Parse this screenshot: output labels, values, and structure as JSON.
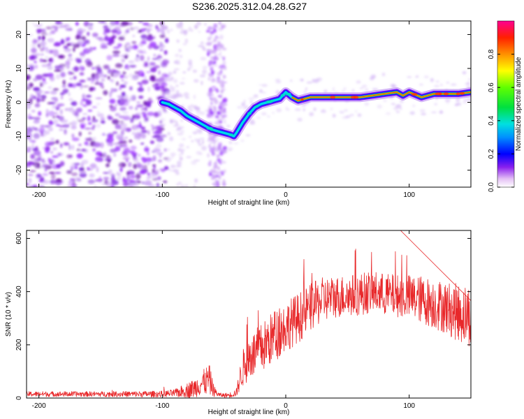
{
  "title": "S236.2025.312.04.28.G27",
  "chart_data": [
    {
      "type": "heatmap",
      "title": "S236.2025.312.04.28.G27",
      "xlabel": "Height of straight line (km)",
      "ylabel": "Frequency (Hz)",
      "xlim": [
        -210,
        150
      ],
      "ylim": [
        -25,
        24
      ],
      "xticks": [
        -200,
        -100,
        0,
        100
      ],
      "yticks": [
        -20,
        -10,
        0,
        10,
        20
      ],
      "ridge_x": [
        -100,
        -95,
        -90,
        -85,
        -80,
        -75,
        -70,
        -65,
        -60,
        -55,
        -50,
        -45,
        -42,
        -40,
        -35,
        -30,
        -25,
        -20,
        -15,
        -10,
        -5,
        0,
        5,
        10,
        20,
        40,
        60,
        70,
        80,
        90,
        95,
        100,
        110,
        120,
        130,
        140,
        150
      ],
      "ridge_y": [
        0,
        -0.5,
        -1.5,
        -2.5,
        -4,
        -5,
        -6,
        -7,
        -8,
        -8.5,
        -9,
        -9.5,
        -10,
        -9,
        -6,
        -3.5,
        -1.5,
        -0.5,
        0,
        0.5,
        1,
        3,
        1.5,
        0.5,
        1.5,
        1.5,
        1.5,
        2,
        2.5,
        3,
        2,
        3,
        1.5,
        2.5,
        2.5,
        2.5,
        3
      ]
    },
    {
      "type": "colorbar",
      "label": "Normalized spectral amplitude",
      "range": [
        0,
        1
      ],
      "ticks": [
        "0.0",
        "0.2",
        "0.4",
        "0.6",
        "0.8"
      ]
    },
    {
      "type": "line",
      "series": [
        {
          "name": "SNR",
          "color": "#e8282a"
        }
      ],
      "xlabel": "Height of straight line (km)",
      "ylabel": "SNR (10 * v/v)",
      "xlim": [
        -210,
        150
      ],
      "ylim": [
        0,
        630
      ],
      "xticks": [
        -200,
        -100,
        0,
        100
      ],
      "yticks": [
        0,
        200,
        400,
        600
      ],
      "envelope_x": [
        -210,
        -150,
        -100,
        -90,
        -75,
        -68,
        -62,
        -58,
        -54,
        -50,
        -45,
        -40,
        -35,
        -30,
        -20,
        -10,
        0,
        10,
        20,
        30,
        40,
        50,
        60,
        70,
        80,
        90,
        100,
        110,
        120,
        130,
        140,
        150
      ],
      "envelope_mean": [
        15,
        15,
        15,
        18,
        35,
        55,
        70,
        25,
        12,
        10,
        12,
        20,
        110,
        150,
        185,
        230,
        270,
        300,
        340,
        370,
        380,
        385,
        390,
        400,
        390,
        385,
        380,
        370,
        355,
        340,
        320,
        310
      ],
      "envelope_noise": [
        10,
        10,
        12,
        15,
        35,
        45,
        60,
        20,
        8,
        8,
        10,
        15,
        70,
        85,
        95,
        100,
        95,
        95,
        90,
        85,
        80,
        80,
        80,
        80,
        80,
        80,
        85,
        90,
        95,
        100,
        110,
        120
      ]
    }
  ]
}
